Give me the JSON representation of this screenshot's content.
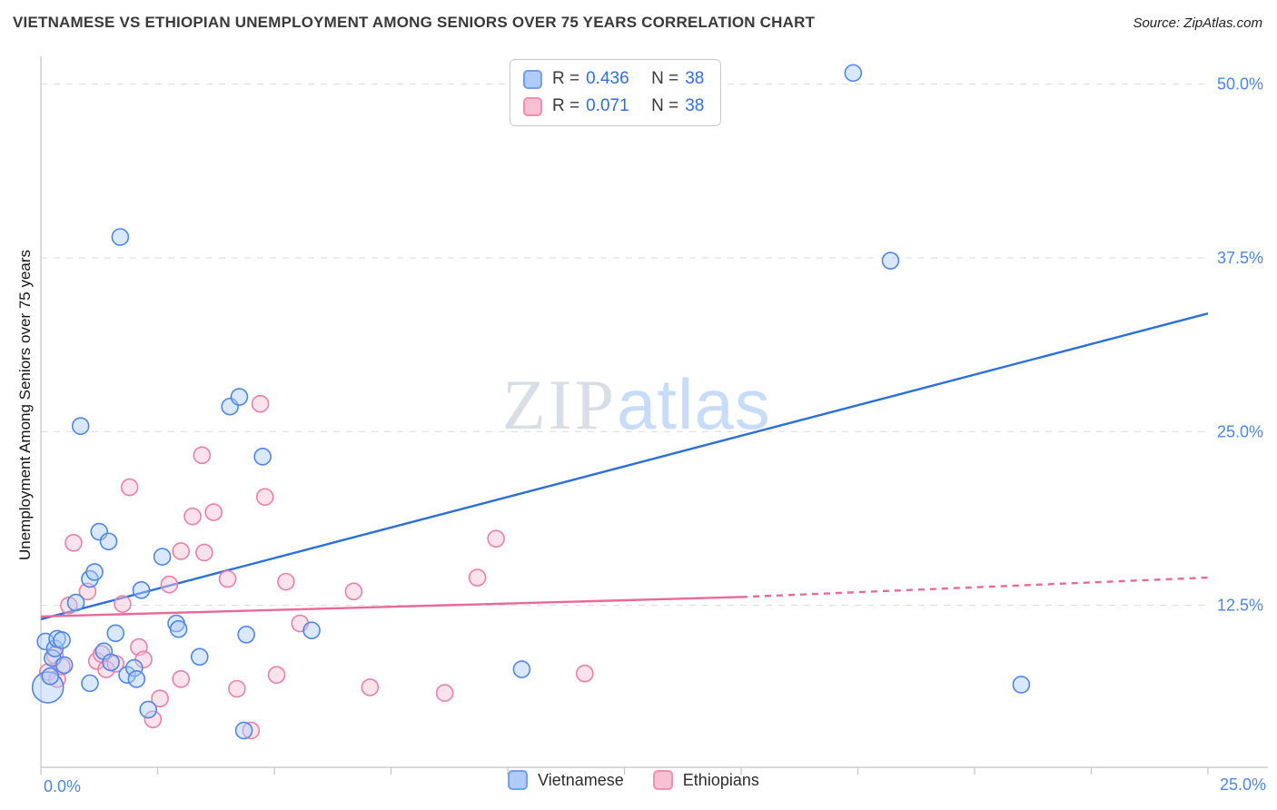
{
  "header": {
    "title": "VIETNAMESE VS ETHIOPIAN UNEMPLOYMENT AMONG SENIORS OVER 75 YEARS CORRELATION CHART",
    "source": "Source: ZipAtlas.com"
  },
  "watermark": {
    "zip": "ZIP",
    "atlas": "atlas"
  },
  "legend_box": {
    "rows": [
      {
        "series": "Vietnamese",
        "r_label": "R =",
        "r_value": "0.436",
        "n_label": "N =",
        "n_value": "38"
      },
      {
        "series": "Ethiopians",
        "r_label": "R =",
        "r_value": "0.071",
        "n_label": "N =",
        "n_value": "38"
      }
    ]
  },
  "bottom_legend": {
    "items": [
      {
        "label": "Vietnamese"
      },
      {
        "label": "Ethiopians"
      }
    ]
  },
  "colors": {
    "vietnamese_fill": "#aecbfa",
    "vietnamese_stroke": "#4f86ec",
    "vietnamese_line": "#2b6fdb",
    "ethiopian_fill": "#f9c0d3",
    "ethiopian_stroke": "#ee7fa8",
    "ethiopian_line": "#e8699a",
    "tick_label": "#4a87ee",
    "grid": "#d9d9d9",
    "axis": "#c4c4c4"
  },
  "chart_data": {
    "type": "scatter",
    "title": "VIETNAMESE VS ETHIOPIAN UNEMPLOYMENT AMONG SENIORS OVER 75 YEARS CORRELATION CHART",
    "xlabel": "",
    "ylabel": "Unemployment Among Seniors over 75 years",
    "xlim": [
      0,
      25
    ],
    "ylim": [
      0,
      52
    ],
    "x_ticks_percent": [
      0,
      2.5,
      5,
      7.5,
      10,
      12.5,
      15,
      17.5,
      20,
      22.5,
      25
    ],
    "x_tick_labels": [
      "0.0%",
      "25.0%"
    ],
    "y_ticks": [
      12.5,
      25,
      37.5,
      50
    ],
    "y_tick_labels": [
      "12.5%",
      "25.0%",
      "37.5%",
      "50.0%"
    ],
    "grid": "horizontal-dashed",
    "legend_position": "top-center",
    "series": [
      {
        "name": "Vietnamese",
        "r": 0.436,
        "n": 38,
        "fill": "#aecbfa",
        "stroke": "#4f86ec",
        "points": [
          [
            0.1,
            9.9
          ],
          [
            0.15,
            6.6,
            17
          ],
          [
            0.2,
            7.4
          ],
          [
            0.25,
            8.7
          ],
          [
            0.3,
            9.4
          ],
          [
            0.35,
            10.1
          ],
          [
            0.45,
            10.0
          ],
          [
            0.5,
            8.2
          ],
          [
            0.75,
            12.7
          ],
          [
            0.85,
            25.4
          ],
          [
            1.05,
            14.4
          ],
          [
            1.05,
            6.9
          ],
          [
            1.15,
            14.9
          ],
          [
            1.25,
            17.8
          ],
          [
            1.35,
            9.2
          ],
          [
            1.45,
            17.1
          ],
          [
            1.5,
            8.4
          ],
          [
            1.6,
            10.5
          ],
          [
            1.7,
            39.0
          ],
          [
            1.85,
            7.5
          ],
          [
            2.0,
            8.0
          ],
          [
            2.05,
            7.2
          ],
          [
            2.15,
            13.6
          ],
          [
            2.3,
            5.0
          ],
          [
            2.6,
            16.0
          ],
          [
            2.9,
            11.2
          ],
          [
            2.95,
            10.8
          ],
          [
            3.4,
            8.8
          ],
          [
            4.05,
            26.8
          ],
          [
            4.25,
            27.5
          ],
          [
            4.35,
            3.5
          ],
          [
            4.4,
            10.4
          ],
          [
            4.75,
            23.2
          ],
          [
            5.8,
            10.7
          ],
          [
            10.3,
            7.9
          ],
          [
            17.4,
            50.8
          ],
          [
            18.2,
            37.3
          ],
          [
            21.0,
            6.8
          ]
        ]
      },
      {
        "name": "Ethiopians",
        "r": 0.071,
        "n": 38,
        "fill": "#f9c0d3",
        "stroke": "#ee7fa8",
        "points": [
          [
            0.15,
            7.7
          ],
          [
            0.3,
            8.9
          ],
          [
            0.35,
            7.2
          ],
          [
            0.45,
            8.1
          ],
          [
            0.6,
            12.5
          ],
          [
            0.7,
            17.0
          ],
          [
            1.0,
            13.5
          ],
          [
            1.2,
            8.5
          ],
          [
            1.3,
            9.0
          ],
          [
            1.4,
            7.9
          ],
          [
            1.6,
            8.3
          ],
          [
            1.75,
            12.6
          ],
          [
            1.9,
            21.0
          ],
          [
            2.1,
            9.5
          ],
          [
            2.2,
            8.6
          ],
          [
            2.4,
            4.3
          ],
          [
            2.55,
            5.8
          ],
          [
            2.75,
            14.0
          ],
          [
            3.0,
            16.4
          ],
          [
            3.0,
            7.2
          ],
          [
            3.25,
            18.9
          ],
          [
            3.45,
            23.3
          ],
          [
            3.5,
            16.3
          ],
          [
            3.7,
            19.2
          ],
          [
            4.0,
            14.4
          ],
          [
            4.2,
            6.5
          ],
          [
            4.5,
            3.5
          ],
          [
            4.7,
            27.0
          ],
          [
            4.8,
            20.3
          ],
          [
            5.05,
            7.5
          ],
          [
            5.25,
            14.2
          ],
          [
            5.55,
            11.2
          ],
          [
            6.7,
            13.5
          ],
          [
            7.05,
            6.6
          ],
          [
            8.65,
            6.2
          ],
          [
            9.35,
            14.5
          ],
          [
            9.75,
            17.3
          ],
          [
            11.65,
            7.6
          ]
        ]
      }
    ],
    "trend_lines": [
      {
        "name": "vietnamese-trend-line",
        "series": "Vietnamese",
        "x1": 0,
        "y1": 11.5,
        "x2": 25,
        "y2": 33.5,
        "style": "solid",
        "color": "#2b6fdb"
      },
      {
        "name": "ethiopians-trend-line",
        "series": "Ethiopians",
        "x1": 0,
        "y1": 11.7,
        "x2": 15,
        "y2": 13.1,
        "style": "solid",
        "color": "#e8699a"
      },
      {
        "name": "ethiopians-trend-line-projection",
        "series": "Ethiopians",
        "x1": 15,
        "y1": 13.1,
        "x2": 25,
        "y2": 14.5,
        "style": "dashed",
        "color": "#e8699a"
      }
    ]
  }
}
